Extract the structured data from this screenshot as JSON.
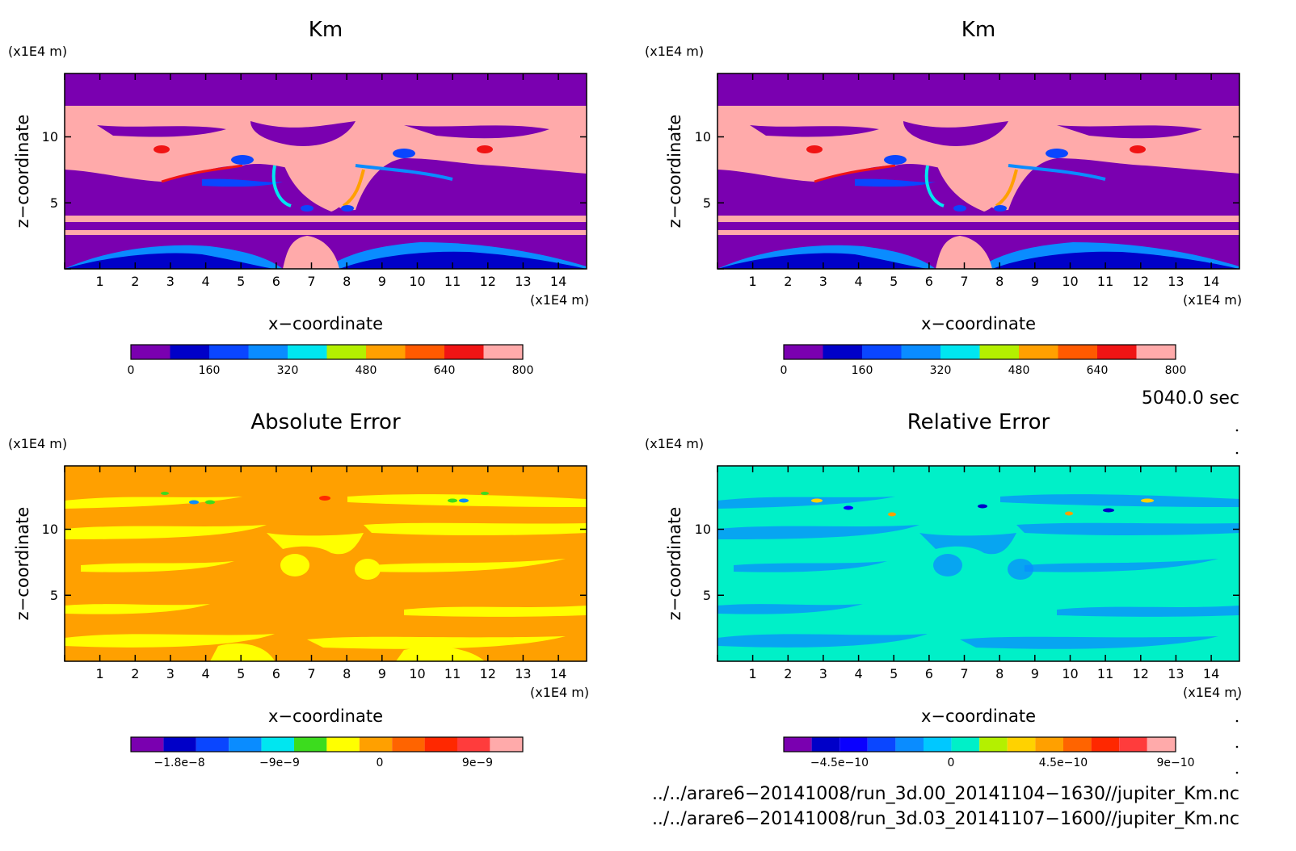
{
  "panels": [
    {
      "title": "Km",
      "x_unit": "(x1E4 m)",
      "z_unit": "(x1E4 m)",
      "xlabel": "x−coordinate",
      "zlabel": "z−coordinate",
      "colorbar_labels": [
        "0",
        "160",
        "320",
        "480",
        "640",
        "800"
      ]
    },
    {
      "title": "Km",
      "x_unit": "(x1E4 m)",
      "z_unit": "(x1E4 m)",
      "xlabel": "x−coordinate",
      "zlabel": "z−coordinate",
      "colorbar_labels": [
        "0",
        "160",
        "320",
        "480",
        "640",
        "800"
      ]
    },
    {
      "title": "Absolute Error",
      "x_unit": "(x1E4 m)",
      "z_unit": "(x1E4 m)",
      "xlabel": "x−coordinate",
      "zlabel": "z−coordinate",
      "colorbar_labels": [
        "−1.8e−8",
        "−9e−9",
        "0",
        "9e−9"
      ]
    },
    {
      "title": "Relative Error",
      "x_unit": "(x1E4 m)",
      "z_unit": "(x1E4 m)",
      "xlabel": "x−coordinate",
      "zlabel": "z−coordinate",
      "colorbar_labels": [
        "−4.5e−10",
        "0",
        "4.5e−10",
        "9e−10"
      ]
    }
  ],
  "time_label": "5040.0 sec",
  "footer_lines": [
    "../../arare6−20141008/run_3d.00_20141104−1630//jupiter_Km.nc",
    "../../arare6−20141008/run_3d.03_20141107−1600//jupiter_Km.nc"
  ],
  "chart_data": [
    {
      "type": "heatmap",
      "title": "Km",
      "xlabel": "x−coordinate",
      "ylabel": "z−coordinate",
      "x_ticks": [
        1,
        2,
        3,
        4,
        5,
        6,
        7,
        8,
        9,
        10,
        11,
        12,
        13,
        14
      ],
      "y_ticks": [
        5,
        10
      ],
      "xlim": [
        0,
        14.8
      ],
      "ylim": [
        0,
        14.8
      ],
      "colorbar": {
        "levels": [
          0,
          80,
          160,
          240,
          320,
          400,
          480,
          560,
          640,
          720,
          800
        ],
        "colors": [
          "#7a00b0",
          "#0000c8",
          "#0a46ff",
          "#0a8cff",
          "#00e6f0",
          "#b4f000",
          "#ffa000",
          "#ff5a00",
          "#f01414",
          "#ffaaaa"
        ],
        "tick_values": [
          0,
          160,
          320,
          480,
          640,
          800
        ]
      }
    },
    {
      "type": "heatmap",
      "title": "Km",
      "xlabel": "x−coordinate",
      "ylabel": "z−coordinate",
      "x_ticks": [
        1,
        2,
        3,
        4,
        5,
        6,
        7,
        8,
        9,
        10,
        11,
        12,
        13,
        14
      ],
      "y_ticks": [
        5,
        10
      ],
      "xlim": [
        0,
        14.8
      ],
      "ylim": [
        0,
        14.8
      ],
      "colorbar": {
        "levels": [
          0,
          80,
          160,
          240,
          320,
          400,
          480,
          560,
          640,
          720,
          800
        ],
        "colors": [
          "#7a00b0",
          "#0000c8",
          "#0a46ff",
          "#0a8cff",
          "#00e6f0",
          "#b4f000",
          "#ffa000",
          "#ff5a00",
          "#f01414",
          "#ffaaaa"
        ],
        "tick_values": [
          0,
          160,
          320,
          480,
          640,
          800
        ]
      }
    },
    {
      "type": "heatmap",
      "title": "Absolute Error",
      "xlabel": "x−coordinate",
      "ylabel": "z−coordinate",
      "x_ticks": [
        1,
        2,
        3,
        4,
        5,
        6,
        7,
        8,
        9,
        10,
        11,
        12,
        13,
        14
      ],
      "y_ticks": [
        5,
        10
      ],
      "xlim": [
        0,
        14.8
      ],
      "ylim": [
        0,
        14.8
      ],
      "colorbar": {
        "levels": [
          -2.7e-08,
          -2.25e-08,
          -1.8e-08,
          -1.35e-08,
          -9e-09,
          -4.5e-09,
          0,
          4.5e-09,
          9e-09,
          1.35e-08,
          1.8e-08
        ],
        "colors": [
          "#7a00b0",
          "#0000c8",
          "#0a46ff",
          "#0a8cff",
          "#00e6f0",
          "#3cdc1e",
          "#ffff00",
          "#ffa000",
          "#ff6400",
          "#ff2800",
          "#ff3c3c",
          "#ffaaaa"
        ],
        "tick_values": [
          -1.8e-08,
          -9e-09,
          0,
          9e-09
        ]
      }
    },
    {
      "type": "heatmap",
      "title": "Relative Error",
      "xlabel": "x−coordinate",
      "ylabel": "z−coordinate",
      "x_ticks": [
        1,
        2,
        3,
        4,
        5,
        6,
        7,
        8,
        9,
        10,
        11,
        12,
        13,
        14
      ],
      "y_ticks": [
        5,
        10
      ],
      "xlim": [
        0,
        14.8
      ],
      "ylim": [
        0,
        14.8
      ],
      "colorbar": {
        "levels": [
          -9e-10,
          -6.75e-10,
          -4.5e-10,
          -2.25e-10,
          0,
          2.25e-10,
          4.5e-10,
          6.75e-10,
          9e-10
        ],
        "colors": [
          "#7a00b0",
          "#0000c8",
          "#0a00ff",
          "#0a46ff",
          "#0a8cff",
          "#00c8ff",
          "#00f0c8",
          "#b4f000",
          "#ffd200",
          "#ffa000",
          "#ff6400",
          "#ff2800",
          "#ff3c3c",
          "#ffaaaa"
        ],
        "tick_values": [
          -4.5e-10,
          0,
          4.5e-10,
          9e-10
        ]
      }
    }
  ]
}
